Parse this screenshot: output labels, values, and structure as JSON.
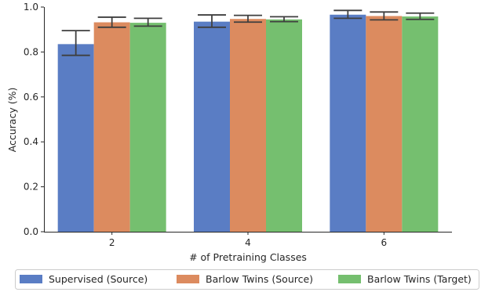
{
  "chart_data": {
    "type": "bar",
    "title": "",
    "xlabel": "# of Pretraining Classes",
    "ylabel": "Accuracy (%)",
    "categories": [
      "2",
      "4",
      "6"
    ],
    "ylim": [
      0,
      1.0
    ],
    "yticks": [
      "0.0",
      "0.2",
      "0.4",
      "0.6",
      "0.8",
      "1.0"
    ],
    "grid": false,
    "legend_position": "bottom",
    "series": [
      {
        "name": "Supervised (Source)",
        "color": "#5a7dc4",
        "values": [
          0.835,
          0.935,
          0.966
        ],
        "error_low": [
          0.785,
          0.91,
          0.95
        ],
        "error_high": [
          0.895,
          0.965,
          0.985
        ]
      },
      {
        "name": "Barlow Twins (Source)",
        "color": "#dc8b5f",
        "values": [
          0.932,
          0.947,
          0.96
        ],
        "error_low": [
          0.91,
          0.933,
          0.943
        ],
        "error_high": [
          0.955,
          0.963,
          0.978
        ]
      },
      {
        "name": "Barlow Twins (Target)",
        "color": "#75bf6f",
        "values": [
          0.93,
          0.945,
          0.958
        ],
        "error_low": [
          0.915,
          0.935,
          0.945
        ],
        "error_high": [
          0.95,
          0.957,
          0.973
        ]
      }
    ]
  }
}
